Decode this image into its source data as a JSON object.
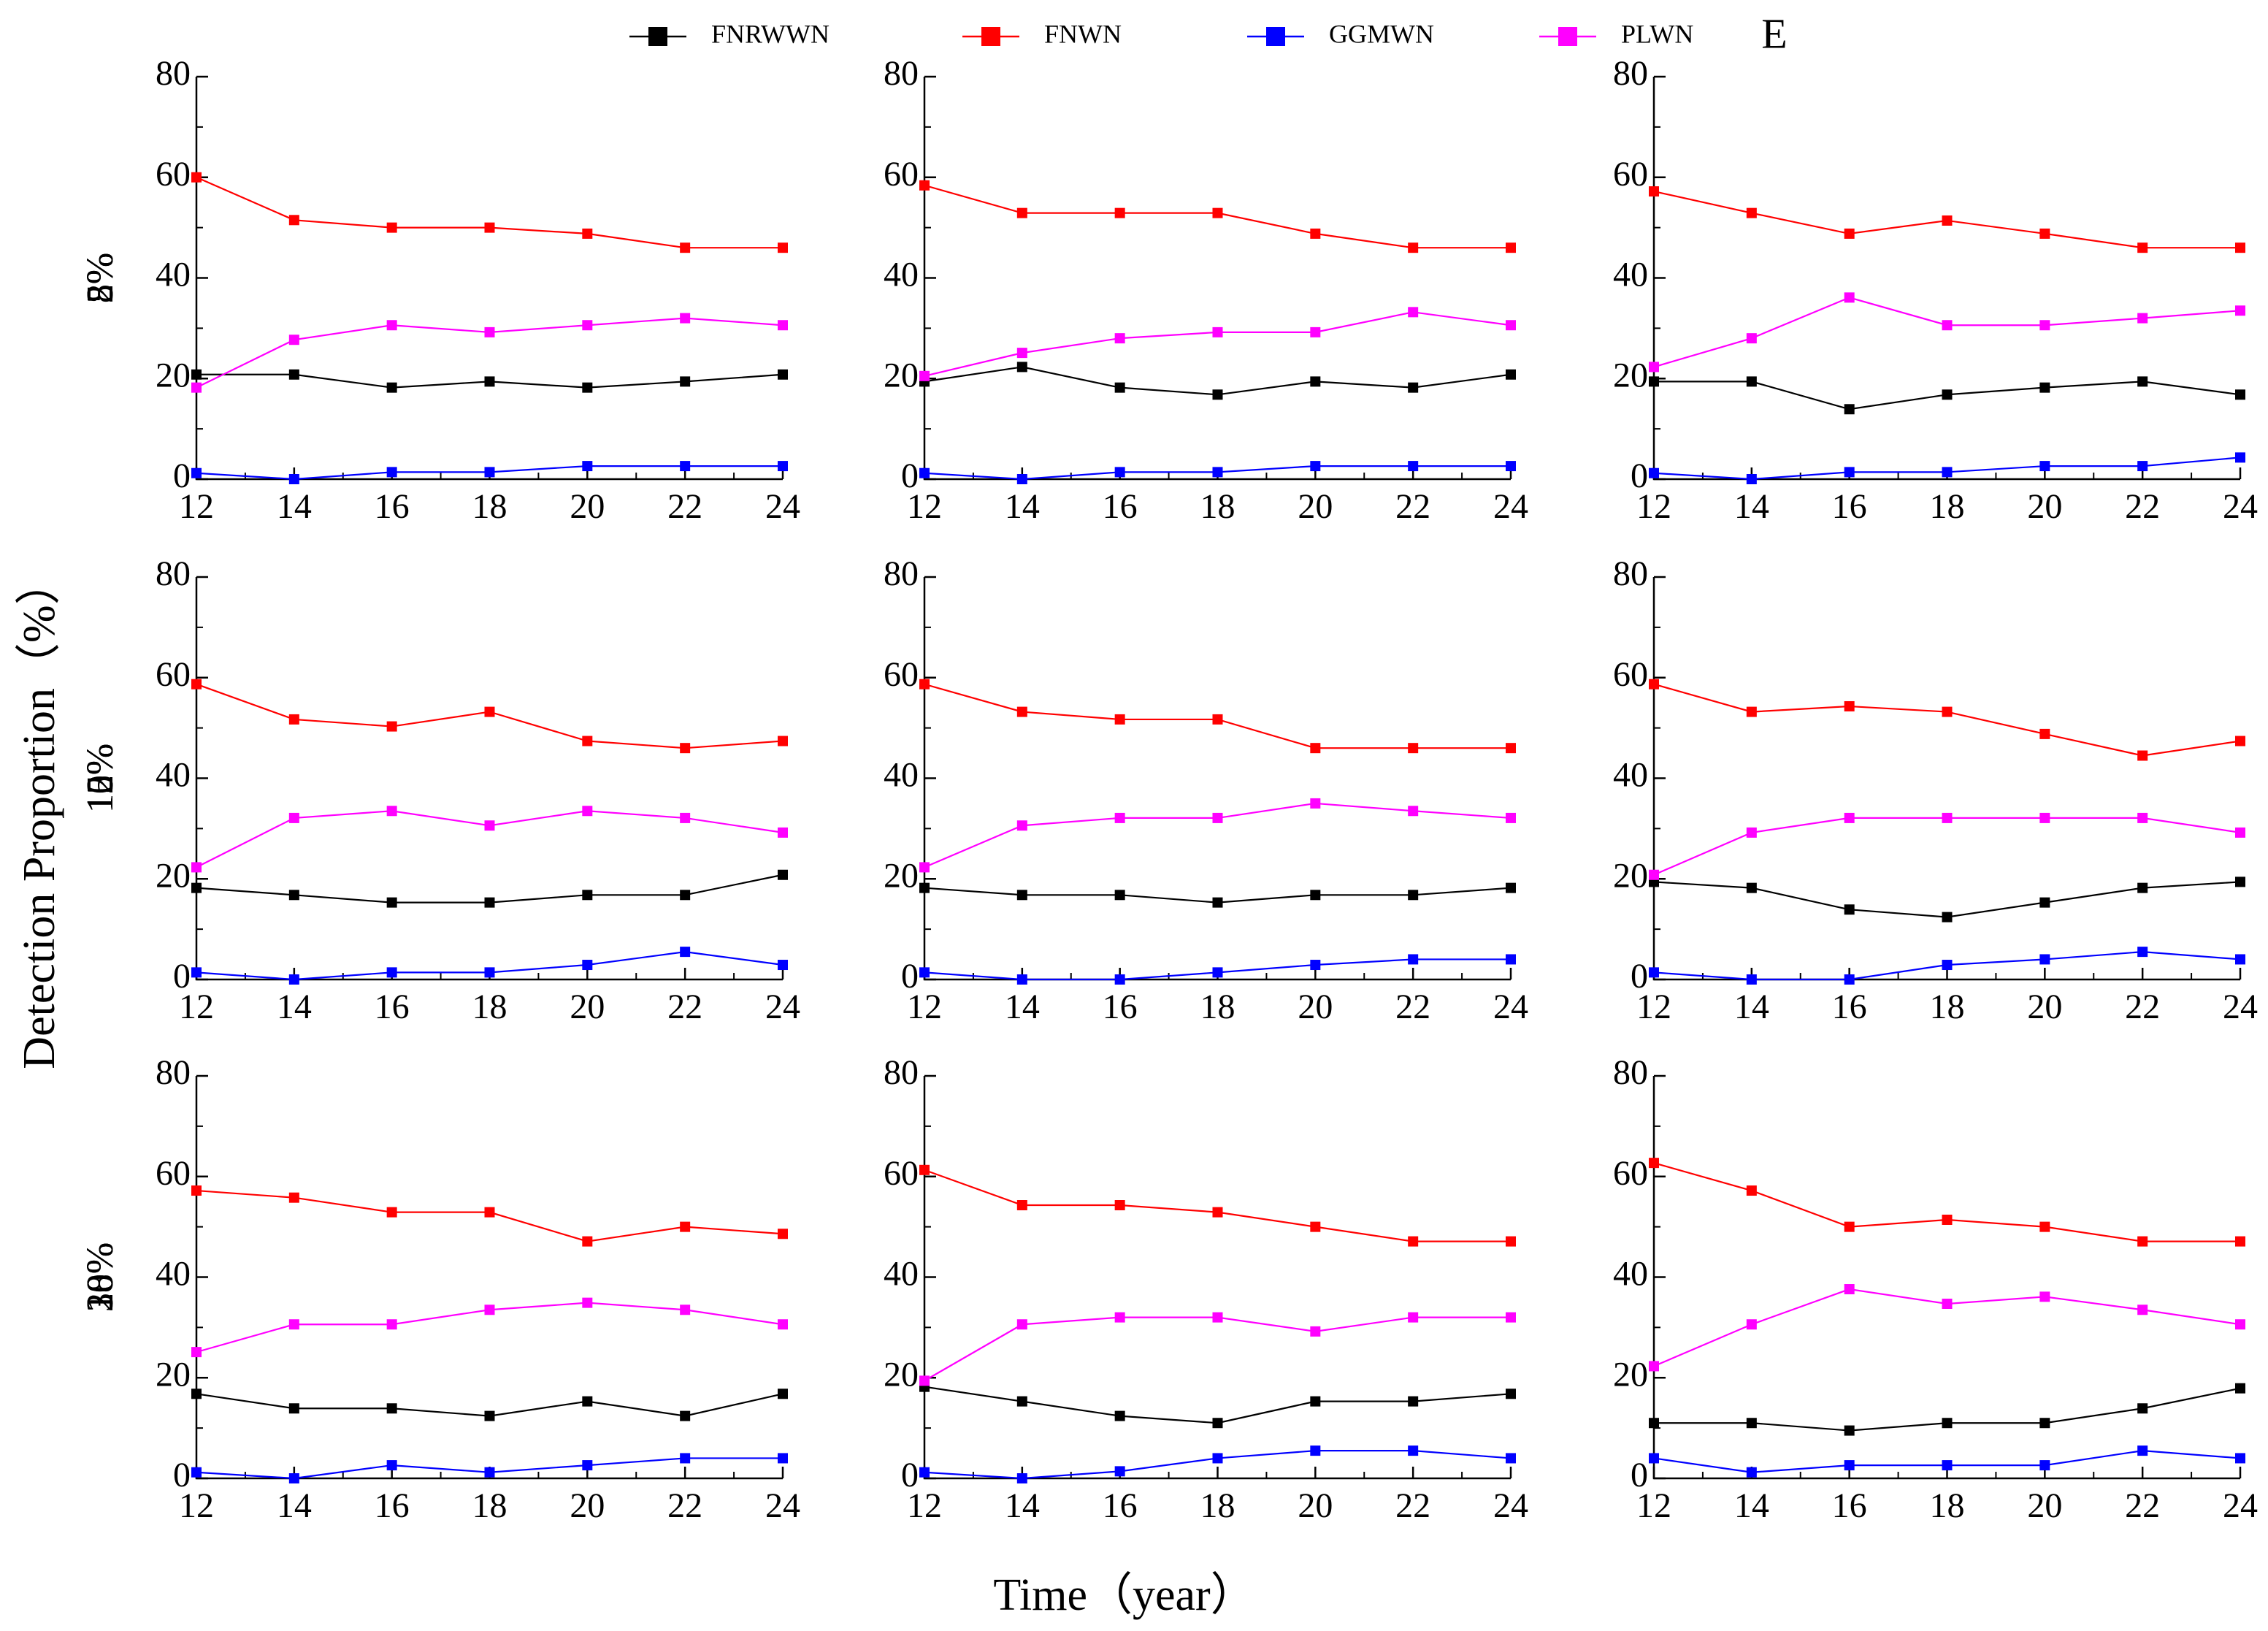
{
  "ylabel": "Detection Proportion（%）",
  "xlabel": "Time（year）",
  "panel_label": "E",
  "legend": [
    {
      "name": "FNRWWN",
      "color": "#000000"
    },
    {
      "name": "FNWN",
      "color": "#ff0000"
    },
    {
      "name": "GGMWN",
      "color": "#0000ff"
    },
    {
      "name": "PLWN",
      "color": "#ff00ff"
    }
  ],
  "chart_data": [
    {
      "type": "line",
      "ylabel": "2%",
      "x": [
        12,
        14,
        16,
        18,
        20,
        22,
        24
      ],
      "xlim": [
        12,
        24
      ],
      "xticks": [
        12,
        14,
        16,
        18,
        20,
        22,
        24
      ],
      "ylim": [
        0,
        80
      ],
      "yticks": [
        0,
        20,
        40,
        60,
        80
      ],
      "series": [
        {
          "values": [
            20.8,
            20.8,
            18.2,
            19.4,
            18.2,
            19.4,
            20.8
          ]
        },
        {
          "values": [
            60,
            51.5,
            50,
            50,
            48.8,
            46,
            46
          ]
        },
        {
          "values": [
            1.2,
            0,
            1.4,
            1.4,
            2.6,
            2.6,
            2.6
          ]
        },
        {
          "values": [
            18.2,
            27.7,
            30.6,
            29.2,
            30.6,
            32,
            30.6
          ]
        }
      ]
    },
    {
      "type": "line",
      "ylabel": "5%",
      "x": [
        12,
        14,
        16,
        18,
        20,
        22,
        24
      ],
      "xlim": [
        12,
        24
      ],
      "xticks": [
        12,
        14,
        16,
        18,
        20,
        22,
        24
      ],
      "ylim": [
        0,
        80
      ],
      "yticks": [
        0,
        20,
        40,
        60,
        80
      ],
      "series": [
        {
          "values": [
            19.4,
            22.3,
            18.2,
            16.8,
            19.4,
            18.2,
            20.8
          ]
        },
        {
          "values": [
            58.4,
            52.9,
            52.9,
            52.9,
            48.8,
            46,
            46
          ]
        },
        {
          "values": [
            1.2,
            0,
            1.4,
            1.4,
            2.6,
            2.6,
            2.6
          ]
        },
        {
          "values": [
            20.5,
            25.1,
            28,
            29.2,
            29.2,
            33.2,
            30.6
          ]
        }
      ]
    },
    {
      "type": "line",
      "ylabel": "8%",
      "x": [
        12,
        14,
        16,
        18,
        20,
        22,
        24
      ],
      "xlim": [
        12,
        24
      ],
      "xticks": [
        12,
        14,
        16,
        18,
        20,
        22,
        24
      ],
      "ylim": [
        0,
        80
      ],
      "yticks": [
        0,
        20,
        40,
        60,
        80
      ],
      "series": [
        {
          "values": [
            19.4,
            19.4,
            13.9,
            16.8,
            18.2,
            19.4,
            16.8
          ]
        },
        {
          "values": [
            57.2,
            52.9,
            48.8,
            51.4,
            48.8,
            46,
            46
          ]
        },
        {
          "values": [
            1.2,
            0,
            1.4,
            1.4,
            2.6,
            2.6,
            4.3
          ]
        },
        {
          "values": [
            22.3,
            28,
            36.1,
            30.6,
            30.6,
            32,
            33.5
          ]
        }
      ]
    },
    {
      "type": "line",
      "ylabel": "10%",
      "x": [
        12,
        14,
        16,
        18,
        20,
        22,
        24
      ],
      "xlim": [
        12,
        24
      ],
      "xticks": [
        12,
        14,
        16,
        18,
        20,
        22,
        24
      ],
      "ylim": [
        0,
        80
      ],
      "yticks": [
        0,
        20,
        40,
        60,
        80
      ],
      "series": [
        {
          "values": [
            18.2,
            16.8,
            15.3,
            15.3,
            16.8,
            16.8,
            20.8
          ]
        },
        {
          "values": [
            58.7,
            51.7,
            50.3,
            53.2,
            47.4,
            46,
            47.4
          ]
        },
        {
          "values": [
            1.4,
            0,
            1.4,
            1.4,
            2.9,
            5.5,
            2.9
          ]
        },
        {
          "values": [
            22.3,
            32.1,
            33.5,
            30.6,
            33.5,
            32.1,
            29.2
          ]
        }
      ]
    },
    {
      "type": "line",
      "ylabel": "12%",
      "x": [
        12,
        14,
        16,
        18,
        20,
        22,
        24
      ],
      "xlim": [
        12,
        24
      ],
      "xticks": [
        12,
        14,
        16,
        18,
        20,
        22,
        24
      ],
      "ylim": [
        0,
        80
      ],
      "yticks": [
        0,
        20,
        40,
        60,
        80
      ],
      "series": [
        {
          "values": [
            18.2,
            16.8,
            16.8,
            15.3,
            16.8,
            16.8,
            18.2
          ]
        },
        {
          "values": [
            58.7,
            53.2,
            51.7,
            51.7,
            46,
            46,
            46
          ]
        },
        {
          "values": [
            1.4,
            0,
            0,
            1.4,
            2.9,
            4,
            4
          ]
        },
        {
          "values": [
            22.3,
            30.6,
            32.1,
            32.1,
            35,
            33.5,
            32.1
          ]
        }
      ]
    },
    {
      "type": "line",
      "ylabel": "15%",
      "x": [
        12,
        14,
        16,
        18,
        20,
        22,
        24
      ],
      "xlim": [
        12,
        24
      ],
      "xticks": [
        12,
        14,
        16,
        18,
        20,
        22,
        24
      ],
      "ylim": [
        0,
        80
      ],
      "yticks": [
        0,
        20,
        40,
        60,
        80
      ],
      "series": [
        {
          "values": [
            19.4,
            18.2,
            13.9,
            12.4,
            15.3,
            18.2,
            19.4
          ]
        },
        {
          "values": [
            58.7,
            53.2,
            54.3,
            53.2,
            48.8,
            44.5,
            47.4
          ]
        },
        {
          "values": [
            1.4,
            0,
            0,
            2.9,
            4,
            5.5,
            4
          ]
        },
        {
          "values": [
            20.8,
            29.2,
            32.1,
            32.1,
            32.1,
            32.1,
            29.2
          ]
        }
      ]
    },
    {
      "type": "line",
      "ylabel": "18%",
      "x": [
        12,
        14,
        16,
        18,
        20,
        22,
        24
      ],
      "xlim": [
        12,
        24
      ],
      "xticks": [
        12,
        14,
        16,
        18,
        20,
        22,
        24
      ],
      "ylim": [
        0,
        80
      ],
      "yticks": [
        0,
        20,
        40,
        60,
        80
      ],
      "series": [
        {
          "values": [
            16.8,
            13.9,
            13.9,
            12.4,
            15.3,
            12.4,
            16.8
          ]
        },
        {
          "values": [
            57.2,
            55.8,
            52.9,
            52.9,
            47.1,
            50,
            48.6
          ]
        },
        {
          "values": [
            1.2,
            0,
            2.6,
            1.2,
            2.6,
            4,
            4
          ]
        },
        {
          "values": [
            25.1,
            30.6,
            30.6,
            33.5,
            34.9,
            33.5,
            30.6
          ]
        }
      ]
    },
    {
      "type": "line",
      "ylabel": "20%",
      "x": [
        12,
        14,
        16,
        18,
        20,
        22,
        24
      ],
      "xlim": [
        12,
        24
      ],
      "xticks": [
        12,
        14,
        16,
        18,
        20,
        22,
        24
      ],
      "ylim": [
        0,
        80
      ],
      "yticks": [
        0,
        20,
        40,
        60,
        80
      ],
      "series": [
        {
          "values": [
            18.2,
            15.3,
            12.4,
            11,
            15.3,
            15.3,
            16.8
          ]
        },
        {
          "values": [
            61.3,
            54.3,
            54.3,
            52.9,
            50,
            47.1,
            47.1
          ]
        },
        {
          "values": [
            1.2,
            0,
            1.4,
            4,
            5.5,
            5.5,
            4
          ]
        },
        {
          "values": [
            19.4,
            30.6,
            32,
            32,
            29.2,
            32,
            32
          ]
        }
      ]
    },
    {
      "type": "line",
      "ylabel": "30%",
      "x": [
        12,
        14,
        16,
        18,
        20,
        22,
        24
      ],
      "xlim": [
        12,
        24
      ],
      "xticks": [
        12,
        14,
        16,
        18,
        20,
        22,
        24
      ],
      "ylim": [
        0,
        80
      ],
      "yticks": [
        0,
        20,
        40,
        60,
        80
      ],
      "series": [
        {
          "values": [
            11,
            11,
            9.5,
            11,
            11,
            13.9,
            17.9
          ]
        },
        {
          "values": [
            62.7,
            57.2,
            50,
            51.4,
            50,
            47.1,
            47.1
          ]
        },
        {
          "values": [
            4,
            1.2,
            2.6,
            2.6,
            2.6,
            5.5,
            4
          ]
        },
        {
          "values": [
            22.3,
            30.6,
            37.6,
            34.7,
            36.1,
            33.5,
            30.6
          ]
        }
      ]
    }
  ]
}
